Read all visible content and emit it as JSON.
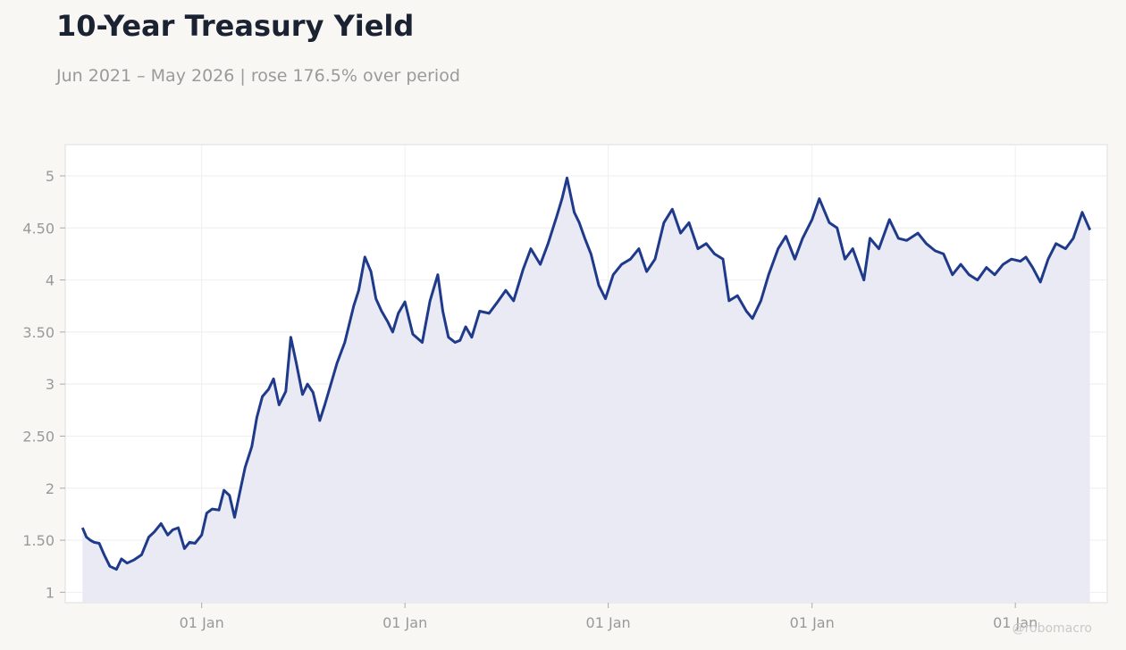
{
  "title": "10-Year Treasury Yield",
  "subtitle": "Jun 2021 – May 2026 | rose 176.5% over period",
  "watermark": "@robomacro",
  "colors": {
    "line": "#1f3a8a",
    "fill": "#e9eaf3",
    "background": "#f8f7f4",
    "plot_background": "#ffffff",
    "grid": "#eeeeee"
  },
  "chart_data": {
    "type": "area",
    "title": "10-Year Treasury Yield",
    "subtitle": "Jun 2021 – May 2026 | rose 176.5% over period",
    "xlabel": "",
    "ylabel": "",
    "xlim": [
      "2021-05-01",
      "2026-06-15"
    ],
    "ylim": [
      0.9,
      5.3
    ],
    "yticks": [
      1,
      1.5,
      2,
      2.5,
      3,
      3.5,
      4,
      4.5,
      5
    ],
    "ytick_labels": [
      "1",
      "1.50",
      "2",
      "2.50",
      "3",
      "3.50",
      "4",
      "4.50",
      "5"
    ],
    "xticks": [
      "2022-01-01",
      "2023-01-01",
      "2024-01-01",
      "2025-01-01",
      "2026-01-01"
    ],
    "xtick_labels": [
      "01 Jan",
      "01 Jan",
      "01 Jan",
      "01 Jan",
      "01 Jan"
    ],
    "grid": true,
    "series": [
      {
        "points": [
          [
            "2021-06-01",
            1.62
          ],
          [
            "2021-06-08",
            1.53
          ],
          [
            "2021-06-15",
            1.5
          ],
          [
            "2021-06-22",
            1.48
          ],
          [
            "2021-07-01",
            1.47
          ],
          [
            "2021-07-10",
            1.36
          ],
          [
            "2021-07-20",
            1.25
          ],
          [
            "2021-08-01",
            1.22
          ],
          [
            "2021-08-10",
            1.32
          ],
          [
            "2021-08-20",
            1.28
          ],
          [
            "2021-09-01",
            1.31
          ],
          [
            "2021-09-15",
            1.36
          ],
          [
            "2021-09-28",
            1.53
          ],
          [
            "2021-10-08",
            1.58
          ],
          [
            "2021-10-20",
            1.66
          ],
          [
            "2021-11-01",
            1.55
          ],
          [
            "2021-11-10",
            1.6
          ],
          [
            "2021-11-20",
            1.62
          ],
          [
            "2021-12-01",
            1.42
          ],
          [
            "2021-12-10",
            1.48
          ],
          [
            "2021-12-20",
            1.47
          ],
          [
            "2022-01-01",
            1.55
          ],
          [
            "2022-01-10",
            1.76
          ],
          [
            "2022-01-20",
            1.8
          ],
          [
            "2022-02-01",
            1.79
          ],
          [
            "2022-02-10",
            1.98
          ],
          [
            "2022-02-20",
            1.93
          ],
          [
            "2022-03-01",
            1.72
          ],
          [
            "2022-03-10",
            1.95
          ],
          [
            "2022-03-20",
            2.2
          ],
          [
            "2022-04-01",
            2.4
          ],
          [
            "2022-04-10",
            2.68
          ],
          [
            "2022-04-20",
            2.88
          ],
          [
            "2022-05-01",
            2.95
          ],
          [
            "2022-05-10",
            3.05
          ],
          [
            "2022-05-20",
            2.8
          ],
          [
            "2022-06-01",
            2.93
          ],
          [
            "2022-06-10",
            3.45
          ],
          [
            "2022-06-20",
            3.2
          ],
          [
            "2022-07-01",
            2.9
          ],
          [
            "2022-07-10",
            3.0
          ],
          [
            "2022-07-20",
            2.92
          ],
          [
            "2022-08-01",
            2.65
          ],
          [
            "2022-08-10",
            2.8
          ],
          [
            "2022-08-20",
            2.98
          ],
          [
            "2022-09-01",
            3.2
          ],
          [
            "2022-09-15",
            3.4
          ],
          [
            "2022-10-01",
            3.75
          ],
          [
            "2022-10-10",
            3.9
          ],
          [
            "2022-10-21",
            4.22
          ],
          [
            "2022-11-01",
            4.08
          ],
          [
            "2022-11-10",
            3.82
          ],
          [
            "2022-11-20",
            3.7
          ],
          [
            "2022-12-01",
            3.6
          ],
          [
            "2022-12-10",
            3.5
          ],
          [
            "2022-12-20",
            3.68
          ],
          [
            "2023-01-01",
            3.79
          ],
          [
            "2023-01-15",
            3.48
          ],
          [
            "2023-02-01",
            3.4
          ],
          [
            "2023-02-15",
            3.8
          ],
          [
            "2023-03-01",
            4.05
          ],
          [
            "2023-03-10",
            3.7
          ],
          [
            "2023-03-20",
            3.45
          ],
          [
            "2023-04-01",
            3.4
          ],
          [
            "2023-04-10",
            3.42
          ],
          [
            "2023-04-20",
            3.55
          ],
          [
            "2023-05-01",
            3.45
          ],
          [
            "2023-05-15",
            3.7
          ],
          [
            "2023-06-01",
            3.68
          ],
          [
            "2023-06-15",
            3.78
          ],
          [
            "2023-07-01",
            3.9
          ],
          [
            "2023-07-15",
            3.8
          ],
          [
            "2023-08-01",
            4.1
          ],
          [
            "2023-08-15",
            4.3
          ],
          [
            "2023-09-01",
            4.15
          ],
          [
            "2023-09-15",
            4.35
          ],
          [
            "2023-10-01",
            4.62
          ],
          [
            "2023-10-10",
            4.78
          ],
          [
            "2023-10-19",
            4.98
          ],
          [
            "2023-11-01",
            4.65
          ],
          [
            "2023-11-10",
            4.55
          ],
          [
            "2023-11-20",
            4.4
          ],
          [
            "2023-12-01",
            4.25
          ],
          [
            "2023-12-15",
            3.95
          ],
          [
            "2023-12-27",
            3.82
          ],
          [
            "2024-01-10",
            4.05
          ],
          [
            "2024-01-25",
            4.15
          ],
          [
            "2024-02-10",
            4.2
          ],
          [
            "2024-02-25",
            4.3
          ],
          [
            "2024-03-10",
            4.08
          ],
          [
            "2024-03-25",
            4.2
          ],
          [
            "2024-04-10",
            4.55
          ],
          [
            "2024-04-25",
            4.68
          ],
          [
            "2024-05-10",
            4.45
          ],
          [
            "2024-05-25",
            4.55
          ],
          [
            "2024-06-10",
            4.3
          ],
          [
            "2024-06-25",
            4.35
          ],
          [
            "2024-07-10",
            4.25
          ],
          [
            "2024-07-25",
            4.2
          ],
          [
            "2024-08-05",
            3.8
          ],
          [
            "2024-08-20",
            3.85
          ],
          [
            "2024-09-05",
            3.7
          ],
          [
            "2024-09-16",
            3.63
          ],
          [
            "2024-10-01",
            3.8
          ],
          [
            "2024-10-15",
            4.05
          ],
          [
            "2024-11-01",
            4.3
          ],
          [
            "2024-11-15",
            4.42
          ],
          [
            "2024-12-01",
            4.2
          ],
          [
            "2024-12-15",
            4.4
          ],
          [
            "2025-01-01",
            4.58
          ],
          [
            "2025-01-14",
            4.78
          ],
          [
            "2025-02-01",
            4.55
          ],
          [
            "2025-02-15",
            4.5
          ],
          [
            "2025-03-01",
            4.2
          ],
          [
            "2025-03-15",
            4.3
          ],
          [
            "2025-04-04",
            4.0
          ],
          [
            "2025-04-15",
            4.4
          ],
          [
            "2025-05-01",
            4.3
          ],
          [
            "2025-05-20",
            4.58
          ],
          [
            "2025-06-05",
            4.4
          ],
          [
            "2025-06-20",
            4.38
          ],
          [
            "2025-07-10",
            4.45
          ],
          [
            "2025-07-25",
            4.35
          ],
          [
            "2025-08-10",
            4.28
          ],
          [
            "2025-08-25",
            4.25
          ],
          [
            "2025-09-10",
            4.05
          ],
          [
            "2025-09-25",
            4.15
          ],
          [
            "2025-10-10",
            4.05
          ],
          [
            "2025-10-25",
            4.0
          ],
          [
            "2025-11-10",
            4.12
          ],
          [
            "2025-11-25",
            4.05
          ],
          [
            "2025-12-10",
            4.15
          ],
          [
            "2025-12-25",
            4.2
          ],
          [
            "2026-01-10",
            4.18
          ],
          [
            "2026-01-20",
            4.22
          ],
          [
            "2026-02-01",
            4.12
          ],
          [
            "2026-02-15",
            3.98
          ],
          [
            "2026-03-01",
            4.2
          ],
          [
            "2026-03-15",
            4.35
          ],
          [
            "2026-04-01",
            4.3
          ],
          [
            "2026-04-15",
            4.4
          ],
          [
            "2026-05-01",
            4.65
          ],
          [
            "2026-05-15",
            4.48
          ]
        ]
      }
    ]
  }
}
